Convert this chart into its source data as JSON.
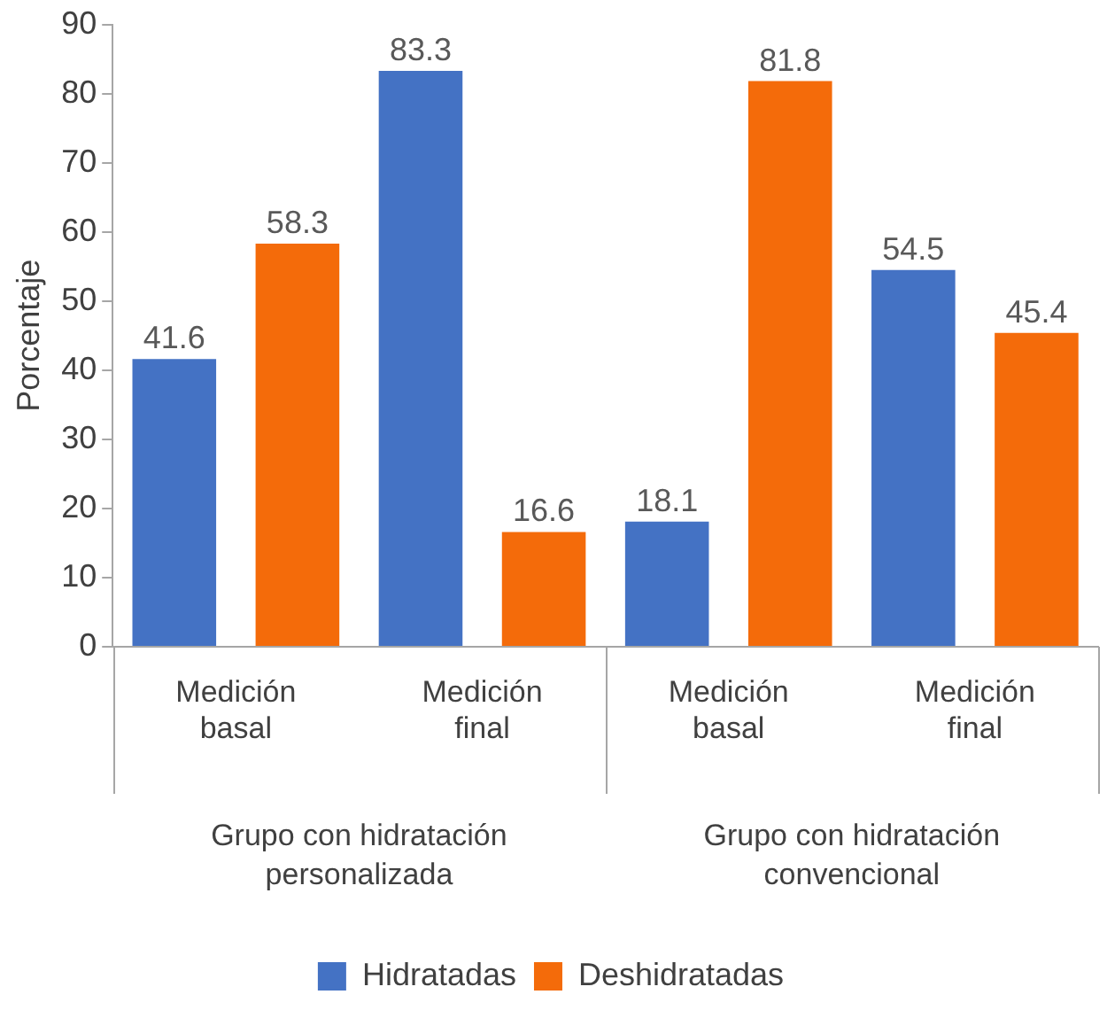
{
  "chart_data": {
    "type": "bar",
    "ylabel": "Porcentaje",
    "categories": [
      "Medición basal",
      "Medición final",
      "Medición basal",
      "Medición final"
    ],
    "series": [
      {
        "name": "Hidratadas",
        "color": "#4472c4",
        "values": [
          41.6,
          83.3,
          18.1,
          54.5
        ]
      },
      {
        "name": "Deshidratadas",
        "color": "#f46b0a",
        "values": [
          58.3,
          16.6,
          81.8,
          45.4
        ]
      }
    ],
    "ylim": [
      0,
      90
    ],
    "yticks": [
      0,
      10,
      20,
      30,
      40,
      50,
      60,
      70,
      80,
      90
    ],
    "grid": false,
    "legend": "bottom",
    "data_labels": true,
    "annotations": [
      "Grupo con hidratación personalizada",
      "Grupo con hidratación convencional"
    ]
  }
}
